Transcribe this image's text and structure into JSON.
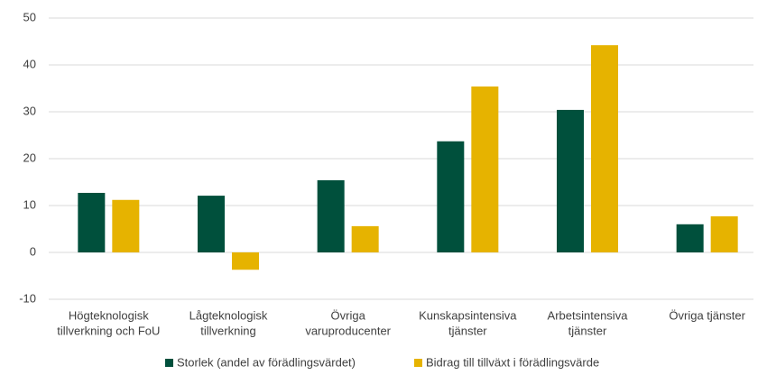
{
  "chart_data": {
    "type": "bar",
    "categories": [
      [
        "Högteknologisk",
        "tillverkning och FoU"
      ],
      [
        "Lågteknologisk",
        "tillverkning"
      ],
      [
        "Övriga",
        "varuproducenter"
      ],
      [
        "Kunskapsintensiva",
        "tjänster"
      ],
      [
        "Arbetsintensiva",
        "tjänster"
      ],
      [
        "Övriga tjänster"
      ]
    ],
    "series": [
      {
        "name": "Storlek (andel av förädlingsvärdet)",
        "color": "#00503c",
        "values": [
          12.7,
          12.1,
          15.4,
          23.7,
          30.4,
          6.0
        ]
      },
      {
        "name": "Bidrag till tillväxt i förädlingsvärde",
        "color": "#e6b300",
        "values": [
          11.2,
          -3.7,
          5.6,
          35.4,
          44.2,
          7.7
        ]
      }
    ],
    "ylim": [
      -10,
      50
    ],
    "yticks": [
      -10,
      0,
      10,
      20,
      30,
      40,
      50
    ],
    "grid": true,
    "legend": "bottom"
  }
}
